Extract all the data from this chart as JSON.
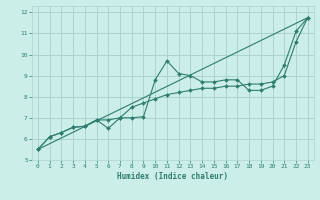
{
  "title": "",
  "xlabel": "Humidex (Indice chaleur)",
  "bg_color": "#cceee8",
  "grid_color": "#aad4ce",
  "line_color": "#2e7d6e",
  "xlim": [
    -0.5,
    23.5
  ],
  "ylim": [
    5.0,
    12.3
  ],
  "xticks": [
    0,
    1,
    2,
    3,
    4,
    5,
    6,
    7,
    8,
    9,
    10,
    11,
    12,
    13,
    14,
    15,
    16,
    17,
    18,
    19,
    20,
    21,
    22,
    23
  ],
  "yticks": [
    5,
    6,
    7,
    8,
    9,
    10,
    11,
    12
  ],
  "series1_x": [
    0,
    1,
    2,
    3,
    4,
    5,
    6,
    7,
    8,
    9,
    10,
    11,
    12,
    13,
    14,
    15,
    16,
    17,
    18,
    19,
    20,
    21,
    22,
    23
  ],
  "series1_y": [
    5.5,
    6.1,
    6.3,
    6.55,
    6.6,
    6.9,
    6.5,
    7.0,
    7.0,
    7.05,
    8.8,
    9.7,
    9.1,
    9.0,
    8.7,
    8.7,
    8.8,
    8.8,
    8.3,
    8.3,
    8.5,
    9.5,
    11.1,
    11.75
  ],
  "series2_x": [
    0,
    1,
    2,
    3,
    4,
    5,
    6,
    7,
    8,
    9,
    10,
    11,
    12,
    13,
    14,
    15,
    16,
    17,
    18,
    19,
    20,
    21,
    22,
    23
  ],
  "series2_y": [
    5.5,
    6.1,
    6.3,
    6.55,
    6.6,
    6.9,
    6.9,
    7.0,
    7.5,
    7.7,
    7.9,
    8.1,
    8.2,
    8.3,
    8.4,
    8.4,
    8.5,
    8.5,
    8.6,
    8.6,
    8.7,
    9.0,
    10.6,
    11.75
  ],
  "series3_x": [
    0,
    23
  ],
  "series3_y": [
    5.5,
    11.75
  ]
}
